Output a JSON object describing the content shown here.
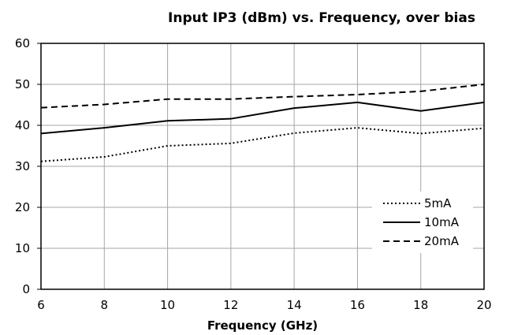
{
  "chart_data": {
    "type": "line",
    "title": "Input IP3 (dBm) vs. Frequency, over bias",
    "xlabel": "Frequency (GHz)",
    "ylabel": "",
    "xlim": [
      6,
      20
    ],
    "ylim": [
      0,
      60
    ],
    "x_ticks": [
      6,
      8,
      10,
      12,
      14,
      16,
      18,
      20
    ],
    "y_ticks": [
      0,
      10,
      20,
      30,
      40,
      50,
      60
    ],
    "grid": true,
    "legend_position": "right",
    "x": [
      6,
      8,
      10,
      12,
      14,
      16,
      18,
      20
    ],
    "series": [
      {
        "name": "5mA",
        "style": "dotted",
        "color": "#000000",
        "values": [
          31.2,
          32.3,
          35.0,
          35.6,
          38.1,
          39.4,
          38.0,
          39.3
        ]
      },
      {
        "name": "10mA",
        "style": "solid",
        "color": "#000000",
        "values": [
          38.0,
          39.4,
          41.1,
          41.6,
          44.2,
          45.6,
          43.5,
          45.6
        ]
      },
      {
        "name": "20mA",
        "style": "dashed",
        "color": "#000000",
        "values": [
          44.3,
          45.1,
          46.4,
          46.4,
          47.0,
          47.5,
          48.3,
          50.0
        ]
      }
    ]
  }
}
